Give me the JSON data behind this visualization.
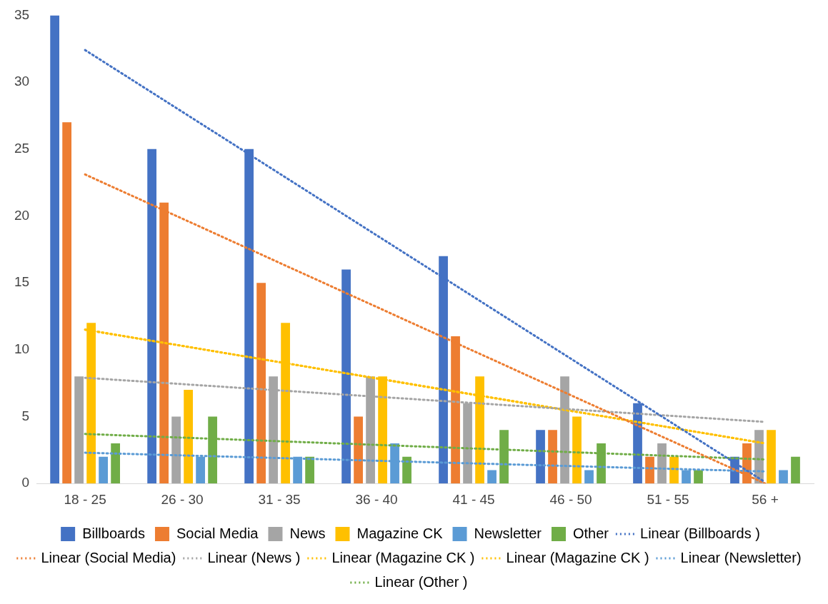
{
  "chart_data": {
    "type": "bar",
    "categories": [
      "18 - 25",
      "26 - 30",
      "31 - 35",
      "36 - 40",
      "41 - 45",
      "46 - 50",
      "51 - 55",
      "56 +"
    ],
    "ylim": [
      0,
      35
    ],
    "yticks": [
      0,
      5,
      10,
      15,
      20,
      25,
      30,
      35
    ],
    "grid": false,
    "legend": "bottom",
    "series": [
      {
        "name": "Billboards",
        "color": "#4472c4",
        "values": [
          35,
          25,
          25,
          16,
          17,
          4,
          6,
          2
        ]
      },
      {
        "name": "Social Media",
        "color": "#ed7d31",
        "values": [
          27,
          21,
          15,
          5,
          11,
          4,
          2,
          3
        ]
      },
      {
        "name": "News",
        "color": "#a5a5a5",
        "values": [
          8,
          5,
          8,
          8,
          6,
          8,
          3,
          4
        ]
      },
      {
        "name": "Magazine CK",
        "color": "#ffc000",
        "values": [
          12,
          7,
          12,
          8,
          8,
          5,
          2,
          4
        ]
      },
      {
        "name": "Newsletter",
        "color": "#5b9bd5",
        "values": [
          2,
          2,
          2,
          3,
          1,
          1,
          1,
          1
        ]
      },
      {
        "name": "Other",
        "color": "#70ad47",
        "values": [
          3,
          5,
          2,
          2,
          4,
          3,
          1,
          2
        ]
      },
      {
        "name": "Linear (Billboards )",
        "type": "line",
        "line_style": "dotted",
        "color": "#4472c4",
        "x": [
          "18 - 25",
          "56 +"
        ],
        "values": [
          32.4,
          0.1
        ]
      },
      {
        "name": "Linear (Social Media)",
        "type": "line",
        "line_style": "dotted",
        "color": "#ed7d31",
        "x": [
          "18 - 25",
          "56 +"
        ],
        "values": [
          23.1,
          0
        ]
      },
      {
        "name": "Linear (News )",
        "type": "line",
        "line_style": "dotted",
        "color": "#a5a5a5",
        "x": [
          "18 - 25",
          "56 +"
        ],
        "values": [
          7.9,
          4.6
        ]
      },
      {
        "name": "Linear (Magazine CK )",
        "type": "line",
        "line_style": "dotted",
        "color": "#ffc000",
        "x": [
          "18 - 25",
          "56 +"
        ],
        "values": [
          11.5,
          3
        ]
      },
      {
        "name": "Linear (Magazine CK )",
        "type": "line",
        "line_style": "dotted",
        "color": "#ffc000",
        "x": [
          "18 - 25",
          "56 +"
        ],
        "values": [
          11.5,
          3
        ]
      },
      {
        "name": "Linear (Newsletter)",
        "type": "line",
        "line_style": "dotted",
        "color": "#5b9bd5",
        "x": [
          "18 - 25",
          "56 +"
        ],
        "values": [
          2.3,
          0.9
        ]
      },
      {
        "name": "Linear (Other )",
        "type": "line",
        "line_style": "dotted",
        "color": "#70ad47",
        "x": [
          "18 - 25",
          "56 +"
        ],
        "values": [
          3.7,
          1.8
        ]
      }
    ]
  }
}
